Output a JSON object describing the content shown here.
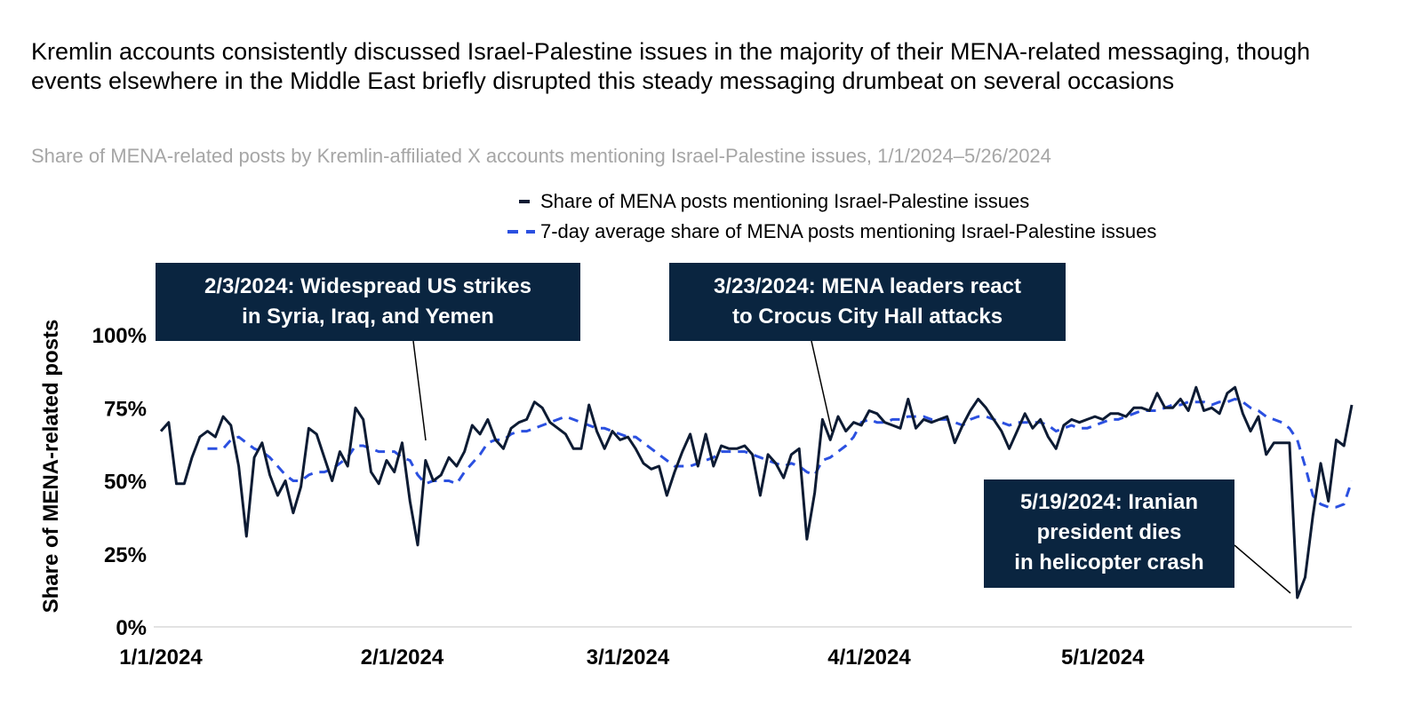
{
  "title": "Kremlin accounts consistently discussed Israel-Palestine issues in the majority of their MENA-related messaging, though events elsewhere in the Middle East briefly disrupted this steady messaging drumbeat on several occasions",
  "subtitle": "Share of MENA-related posts by Kremlin-affiliated X accounts mentioning Israel-Palestine issues, 1/1/2024–5/26/2024",
  "colors": {
    "daily": "#0d1b33",
    "avg": "#2b50e0",
    "callout_bg": "#0a2540"
  },
  "chart_data": {
    "type": "line",
    "ylabel": "Share of MENA-related posts",
    "ylim": [
      0,
      100
    ],
    "y_ticks": [
      "0%",
      "25%",
      "50%",
      "75%",
      "100%"
    ],
    "x_tick_labels": [
      "1/1/2024",
      "2/1/2024",
      "3/1/2024",
      "4/1/2024",
      "5/1/2024"
    ],
    "x_range": [
      "1/1/2024",
      "5/26/2024"
    ],
    "series": [
      {
        "name": "Share of MENA posts mentioning Israel-Palestine issues",
        "style": "solid",
        "values": [
          67,
          70,
          49,
          49,
          58,
          65,
          67,
          65,
          72,
          69,
          55,
          31,
          58,
          63,
          52,
          45,
          50,
          39,
          48,
          68,
          66,
          58,
          50,
          60,
          55,
          75,
          71,
          53,
          49,
          57,
          53,
          63,
          43,
          28,
          57,
          50,
          52,
          58,
          55,
          60,
          69,
          66,
          71,
          64,
          61,
          68,
          70,
          71,
          77,
          75,
          70,
          68,
          66,
          61,
          61,
          76,
          67,
          61,
          67,
          64,
          65,
          61,
          56,
          54,
          55,
          45,
          53,
          60,
          66,
          55,
          66,
          55,
          62,
          61,
          61,
          62,
          59,
          45,
          59,
          56,
          51,
          59,
          61,
          30,
          46,
          71,
          64,
          72,
          67,
          70,
          69,
          74,
          73,
          70,
          69,
          68,
          78,
          68,
          71,
          70,
          71,
          72,
          63,
          69,
          74,
          78,
          75,
          71,
          67,
          61,
          67,
          73,
          68,
          71,
          65,
          61,
          69,
          71,
          70,
          71,
          72,
          71,
          73,
          73,
          72,
          75,
          75,
          74,
          80,
          75,
          75,
          78,
          74,
          82,
          74,
          75,
          73,
          80,
          82,
          73,
          67,
          72,
          59,
          63,
          63,
          63,
          10,
          17,
          38,
          56,
          43,
          64,
          62,
          76
        ]
      },
      {
        "name": "7-day average share of MENA posts mentioning Israel-Palestine issues",
        "style": "dashed",
        "values": [
          null,
          null,
          null,
          null,
          null,
          null,
          61,
          61,
          61,
          64,
          65,
          63,
          61,
          60,
          58,
          55,
          52,
          50,
          50,
          52,
          53,
          53,
          54,
          56,
          58,
          62,
          62,
          61,
          60,
          60,
          60,
          58,
          57,
          52,
          49,
          50,
          50,
          50,
          49,
          53,
          56,
          59,
          63,
          64,
          64,
          66,
          67,
          67,
          68,
          69,
          70,
          71,
          72,
          71,
          70,
          69,
          68,
          68,
          67,
          66,
          65,
          65,
          63,
          61,
          59,
          57,
          55,
          55,
          55,
          56,
          57,
          58,
          60,
          60,
          60,
          60,
          59,
          58,
          57,
          56,
          55,
          56,
          55,
          53,
          52,
          57,
          58,
          60,
          62,
          65,
          70,
          71,
          70,
          70,
          71,
          71,
          72,
          72,
          72,
          71,
          71,
          71,
          70,
          69,
          71,
          72,
          72,
          71,
          70,
          69,
          70,
          70,
          70,
          70,
          69,
          67,
          68,
          69,
          68,
          68,
          69,
          70,
          71,
          71,
          72,
          73,
          74,
          74,
          74,
          75,
          76,
          76,
          77,
          77,
          77,
          76,
          77,
          77,
          78,
          77,
          75,
          74,
          72,
          71,
          70,
          68,
          64,
          55,
          45,
          42,
          41,
          41,
          42,
          50
        ]
      }
    ]
  },
  "annotations": [
    {
      "lines": [
        "2/3/2024: Widespread US strikes",
        "in Syria, Iraq, and Yemen"
      ]
    },
    {
      "lines": [
        "3/23/2024: MENA leaders react",
        "to Crocus City Hall attacks"
      ]
    },
    {
      "lines": [
        "5/19/2024: Iranian",
        "president dies",
        "in helicopter crash"
      ]
    }
  ]
}
